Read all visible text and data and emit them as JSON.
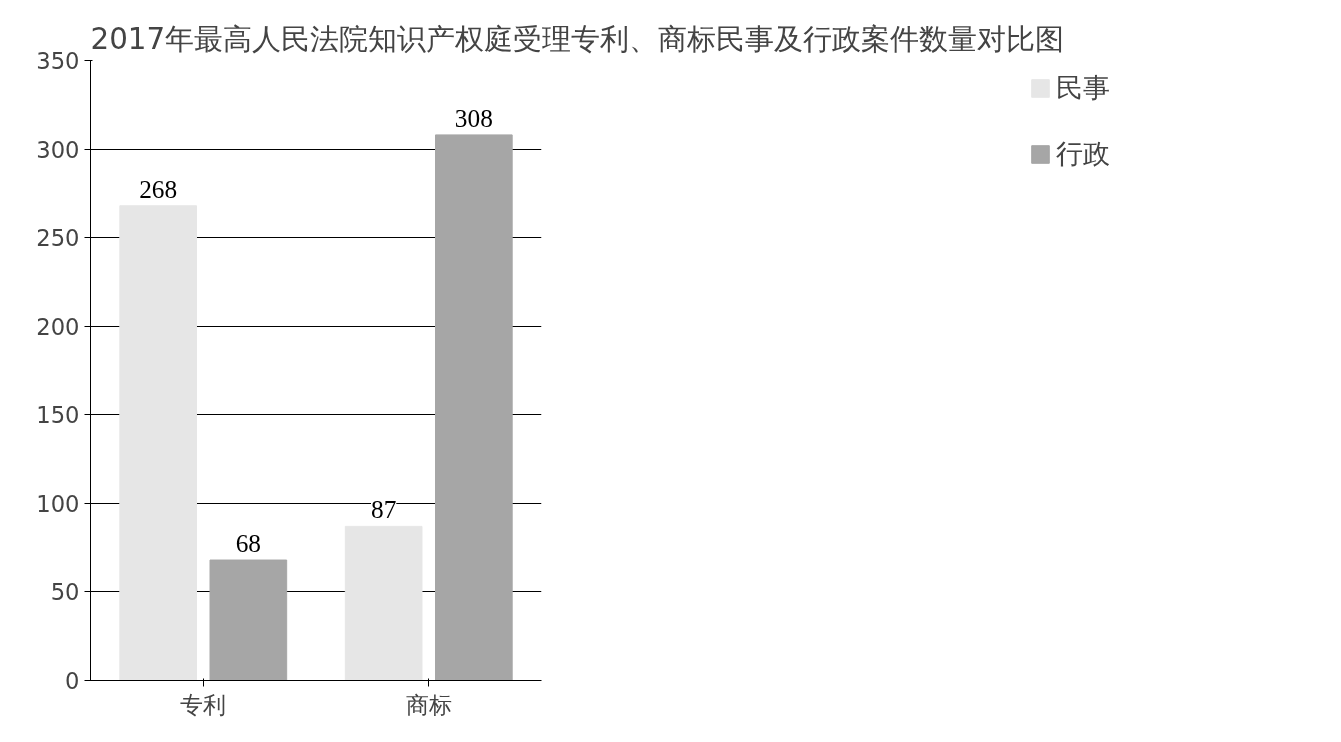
{
  "chart_data": {
    "type": "bar",
    "title": "2017年最高人民法院知识产权庭受理专利、商标民事及行政案件数量对比图",
    "categories": [
      "专利",
      "商标"
    ],
    "series": [
      {
        "name": "民事",
        "color": "#e6e6e6",
        "values": [
          268,
          87
        ]
      },
      {
        "name": "行政",
        "color": "#a6a6a6",
        "values": [
          68,
          308
        ]
      }
    ],
    "ylim": [
      0,
      350
    ],
    "yticks": [
      0,
      50,
      100,
      150,
      200,
      250,
      300,
      350
    ],
    "grid": "y",
    "legend": "right",
    "data_labels": true
  }
}
